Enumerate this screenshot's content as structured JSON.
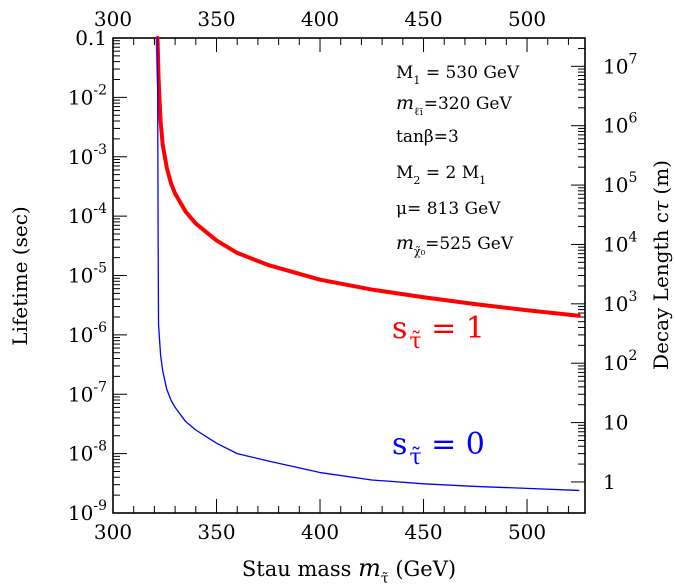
{
  "chart_data": {
    "type": "line",
    "xlabel": "Stau mass",
    "xlabel_symbol": "m",
    "xlabel_subscript": "τ̃",
    "xlabel_unit": "(GeV)",
    "ylabel_left": "Lifetime (sec)",
    "ylabel_right_prefix": "Decay Length c",
    "ylabel_right_symbol": "τ",
    "ylabel_right_unit": "(m)",
    "xlim": [
      300,
      528
    ],
    "ylim": [
      1e-09,
      0.1
    ],
    "yscale": "log",
    "x_ticks": [
      "300",
      "350",
      "400",
      "450",
      "500"
    ],
    "x_tick_values": [
      300,
      350,
      400,
      450,
      500
    ],
    "y_left_ticks": [
      {
        "value": 0.1,
        "base": "0.1",
        "exp": ""
      },
      {
        "value": 0.01,
        "base": "10",
        "exp": "-2"
      },
      {
        "value": 0.001,
        "base": "10",
        "exp": "-3"
      },
      {
        "value": 0.0001,
        "base": "10",
        "exp": "-4"
      },
      {
        "value": 1e-05,
        "base": "10",
        "exp": "-5"
      },
      {
        "value": 1e-06,
        "base": "10",
        "exp": "-6"
      },
      {
        "value": 1e-07,
        "base": "10",
        "exp": "-7"
      },
      {
        "value": 1e-08,
        "base": "10",
        "exp": "-8"
      },
      {
        "value": 1e-09,
        "base": "10",
        "exp": "-9"
      }
    ],
    "y_right_ticks": [
      {
        "value": 1,
        "base": "1",
        "exp": ""
      },
      {
        "value": 10,
        "base": "10",
        "exp": ""
      },
      {
        "value": 100,
        "base": "10",
        "exp": "2"
      },
      {
        "value": 1000,
        "base": "10",
        "exp": "3"
      },
      {
        "value": 10000,
        "base": "10",
        "exp": "4"
      },
      {
        "value": 100000,
        "base": "10",
        "exp": "5"
      },
      {
        "value": 1000000,
        "base": "10",
        "exp": "6"
      },
      {
        "value": 10000000,
        "base": "10",
        "exp": "7"
      }
    ],
    "right_axis_conversion_factor": 300000000,
    "annotations": [
      {
        "pre": "M",
        "sub": "1",
        "post": " = 530 GeV"
      },
      {
        "pre": "m",
        "sub": "ℓ̃₁",
        "post": "=320 GeV"
      },
      {
        "pre": "tanβ=3",
        "sub": "",
        "post": ""
      },
      {
        "pre": "M",
        "sub": "2",
        "post": " = 2 M",
        "sub2": "1"
      },
      {
        "pre": "μ= 813 GeV",
        "sub": "",
        "post": ""
      },
      {
        "pre": "m",
        "sub": "χ̃₀",
        "post": "=525 GeV"
      }
    ],
    "series": [
      {
        "name": "s = 1",
        "label_text": "s",
        "label_sub": "τ̃",
        "label_value": "=  1",
        "color": "#ff0000",
        "x": [
          321.5,
          322,
          322.5,
          323,
          324,
          326,
          328,
          330,
          335,
          340,
          350,
          360,
          375,
          400,
          425,
          450,
          475,
          500,
          525
        ],
        "y": [
          0.1,
          0.022,
          0.0085,
          0.004,
          0.0016,
          0.00065,
          0.00036,
          0.00024,
          0.00012,
          7.5e-05,
          3.9e-05,
          2.4e-05,
          1.5e-05,
          8.5e-06,
          5.8e-06,
          4.3e-06,
          3.3e-06,
          2.6e-06,
          2.1e-06
        ]
      },
      {
        "name": "s = 0",
        "label_text": "s",
        "label_sub": "τ̃",
        "label_value": "=  0",
        "color": "#0000ff",
        "x": [
          321.5,
          321.8,
          322,
          323,
          324,
          326,
          328,
          330,
          335,
          340,
          350,
          360,
          375,
          400,
          425,
          450,
          475,
          500,
          525
        ],
        "y": [
          0.1,
          4e-05,
          1.5e-06,
          4.5e-07,
          2.5e-07,
          1.2e-07,
          8e-08,
          6e-08,
          3.5e-08,
          2.5e-08,
          1.5e-08,
          1e-08,
          7.5e-09,
          4.8e-09,
          3.6e-09,
          3.1e-09,
          2.8e-09,
          2.6e-09,
          2.4e-09
        ]
      }
    ]
  }
}
